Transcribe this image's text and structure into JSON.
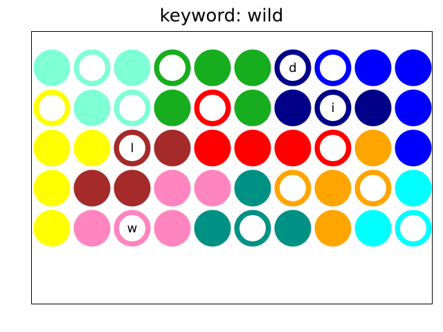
{
  "title": "keyword: wild",
  "colors": {
    "aquamarine": "#7fffd4",
    "green": "#17ad1f",
    "navy": "#000088",
    "blue": "#0000ff",
    "yellow": "#ffff00",
    "brown": "#a52a2a",
    "red": "#ff0000",
    "orange": "#ffa500",
    "pink": "#ff85c0",
    "teal": "#009185",
    "cyan": "#00ffff"
  },
  "grid": [
    [
      {
        "color": "aquamarine",
        "style": "filled",
        "letter": ""
      },
      {
        "color": "aquamarine",
        "style": "ring",
        "letter": ""
      },
      {
        "color": "aquamarine",
        "style": "filled",
        "letter": ""
      },
      {
        "color": "green",
        "style": "ring",
        "letter": ""
      },
      {
        "color": "green",
        "style": "filled",
        "letter": ""
      },
      {
        "color": "green",
        "style": "filled",
        "letter": ""
      },
      {
        "color": "navy",
        "style": "ring",
        "letter": "d"
      },
      {
        "color": "blue",
        "style": "ring",
        "letter": ""
      },
      {
        "color": "blue",
        "style": "filled",
        "letter": ""
      },
      {
        "color": "blue",
        "style": "filled",
        "letter": ""
      }
    ],
    [
      {
        "color": "yellow",
        "style": "ring",
        "letter": ""
      },
      {
        "color": "aquamarine",
        "style": "filled",
        "letter": ""
      },
      {
        "color": "aquamarine",
        "style": "ring",
        "letter": ""
      },
      {
        "color": "green",
        "style": "filled",
        "letter": ""
      },
      {
        "color": "red",
        "style": "ring",
        "letter": ""
      },
      {
        "color": "green",
        "style": "filled",
        "letter": ""
      },
      {
        "color": "navy",
        "style": "filled",
        "letter": ""
      },
      {
        "color": "navy",
        "style": "ring",
        "letter": "i"
      },
      {
        "color": "navy",
        "style": "filled",
        "letter": ""
      },
      {
        "color": "blue",
        "style": "filled",
        "letter": ""
      }
    ],
    [
      {
        "color": "yellow",
        "style": "filled",
        "letter": ""
      },
      {
        "color": "yellow",
        "style": "filled",
        "letter": ""
      },
      {
        "color": "brown",
        "style": "ring",
        "letter": "l"
      },
      {
        "color": "brown",
        "style": "filled",
        "letter": ""
      },
      {
        "color": "red",
        "style": "filled",
        "letter": ""
      },
      {
        "color": "red",
        "style": "filled",
        "letter": ""
      },
      {
        "color": "red",
        "style": "filled",
        "letter": ""
      },
      {
        "color": "red",
        "style": "ring",
        "letter": ""
      },
      {
        "color": "orange",
        "style": "filled",
        "letter": ""
      },
      {
        "color": "blue",
        "style": "filled",
        "letter": ""
      }
    ],
    [
      {
        "color": "yellow",
        "style": "filled",
        "letter": ""
      },
      {
        "color": "brown",
        "style": "filled",
        "letter": ""
      },
      {
        "color": "brown",
        "style": "filled",
        "letter": ""
      },
      {
        "color": "pink",
        "style": "filled",
        "letter": ""
      },
      {
        "color": "pink",
        "style": "filled",
        "letter": ""
      },
      {
        "color": "teal",
        "style": "filled",
        "letter": ""
      },
      {
        "color": "orange",
        "style": "ring",
        "letter": ""
      },
      {
        "color": "orange",
        "style": "filled",
        "letter": ""
      },
      {
        "color": "orange",
        "style": "ring",
        "letter": ""
      },
      {
        "color": "cyan",
        "style": "filled",
        "letter": ""
      }
    ],
    [
      {
        "color": "yellow",
        "style": "filled",
        "letter": ""
      },
      {
        "color": "pink",
        "style": "filled",
        "letter": ""
      },
      {
        "color": "pink",
        "style": "ring",
        "letter": "w"
      },
      {
        "color": "pink",
        "style": "filled",
        "letter": ""
      },
      {
        "color": "teal",
        "style": "filled",
        "letter": ""
      },
      {
        "color": "teal",
        "style": "ring",
        "letter": ""
      },
      {
        "color": "teal",
        "style": "filled",
        "letter": ""
      },
      {
        "color": "orange",
        "style": "filled",
        "letter": ""
      },
      {
        "color": "cyan",
        "style": "filled",
        "letter": ""
      },
      {
        "color": "cyan",
        "style": "ring",
        "letter": ""
      }
    ]
  ]
}
